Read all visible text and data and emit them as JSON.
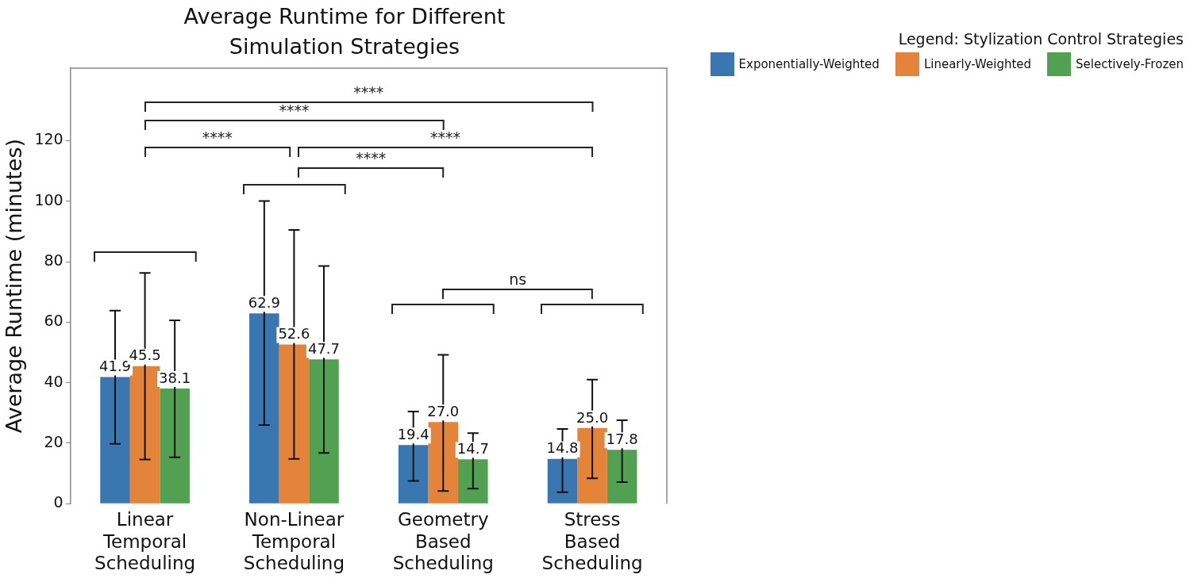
{
  "chart_data": {
    "type": "bar",
    "title": "Average Runtime for Different Simulation Strategies",
    "ylabel": "Average Runtime (minutes)",
    "legend_title": "Legend: Stylization Control Strategies",
    "categories": [
      "Linear Temporal Scheduling",
      "Non-Linear Temporal Scheduling",
      "Geometry Based Scheduling",
      "Stress Based Scheduling"
    ],
    "series": [
      {
        "name": "Exponentially-Weighted",
        "color": "#3a76b0",
        "values": [
          41.9,
          62.9,
          19.4,
          14.8
        ],
        "value_labels": [
          "41.9",
          "62.9",
          "19.4",
          "14.8"
        ],
        "errors": [
          [
            19.8,
            63.8
          ],
          [
            26.0,
            100.1
          ],
          [
            7.5,
            30.5
          ],
          [
            3.8,
            24.7
          ]
        ]
      },
      {
        "name": "Linearly-Weighted",
        "color": "#e4843b",
        "values": [
          45.5,
          52.6,
          27.0,
          25.0
        ],
        "value_labels": [
          "45.5",
          "52.6",
          "27.0",
          "25.0"
        ],
        "errors": [
          [
            14.6,
            76.3
          ],
          [
            14.8,
            90.5
          ],
          [
            4.2,
            49.2
          ],
          [
            8.4,
            41.0
          ]
        ]
      },
      {
        "name": "Selectively-Frozen",
        "color": "#52a152",
        "values": [
          38.1,
          47.7,
          14.7,
          17.8
        ],
        "value_labels": [
          "38.1",
          "47.7",
          "14.7",
          "17.8"
        ],
        "errors": [
          [
            15.3,
            60.6
          ],
          [
            16.8,
            78.6
          ],
          [
            5.0,
            23.3
          ],
          [
            7.1,
            27.6
          ]
        ]
      }
    ],
    "annotations": [
      "****",
      "****",
      "****",
      "****",
      "****",
      "ns"
    ],
    "ylim": [
      0,
      144
    ],
    "yticks": [
      0,
      20,
      40,
      60,
      80,
      100,
      120
    ],
    "grid": false,
    "legend": "top right"
  }
}
